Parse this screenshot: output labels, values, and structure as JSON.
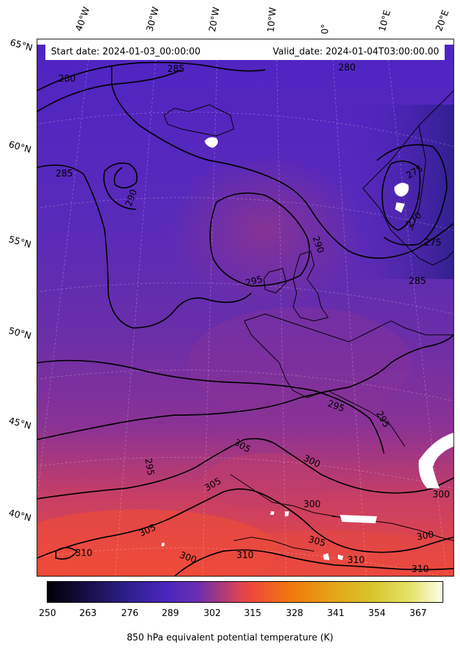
{
  "header": {
    "start_date": "Start date: 2024-01-03_00:00:00",
    "valid_date": "Valid_date: 2024-01-04T03:00:00.00"
  },
  "lon_labels": [
    "40°W",
    "30°W",
    "20°W",
    "10°W",
    "0°",
    "10°E",
    "20°E"
  ],
  "lat_labels": [
    "65°N",
    "60°N",
    "55°N",
    "50°N",
    "45°N",
    "40°N"
  ],
  "contour_labels": [
    "280",
    "285",
    "280",
    "285",
    "290",
    "290",
    "295",
    "275",
    "270",
    "275",
    "285",
    "295",
    "295",
    "295",
    "305",
    "300",
    "305",
    "300",
    "300",
    "305",
    "300",
    "310",
    "300",
    "310",
    "305",
    "310",
    "310",
    "300",
    "305",
    "310"
  ],
  "colorbar": {
    "ticks": [
      "250",
      "263",
      "276",
      "289",
      "302",
      "315",
      "328",
      "341",
      "354",
      "367"
    ],
    "label": "850 hPa equivalent potential temperature (K)",
    "colors": [
      "#000004",
      "#1b0c41",
      "#3b1f8c",
      "#4c2ab8",
      "#5b2fc8",
      "#7a35b8",
      "#b03f8a",
      "#e8483f",
      "#f37a0a",
      "#e9a21a",
      "#dcc52e",
      "#e6e15c",
      "#fcfdea"
    ]
  }
}
